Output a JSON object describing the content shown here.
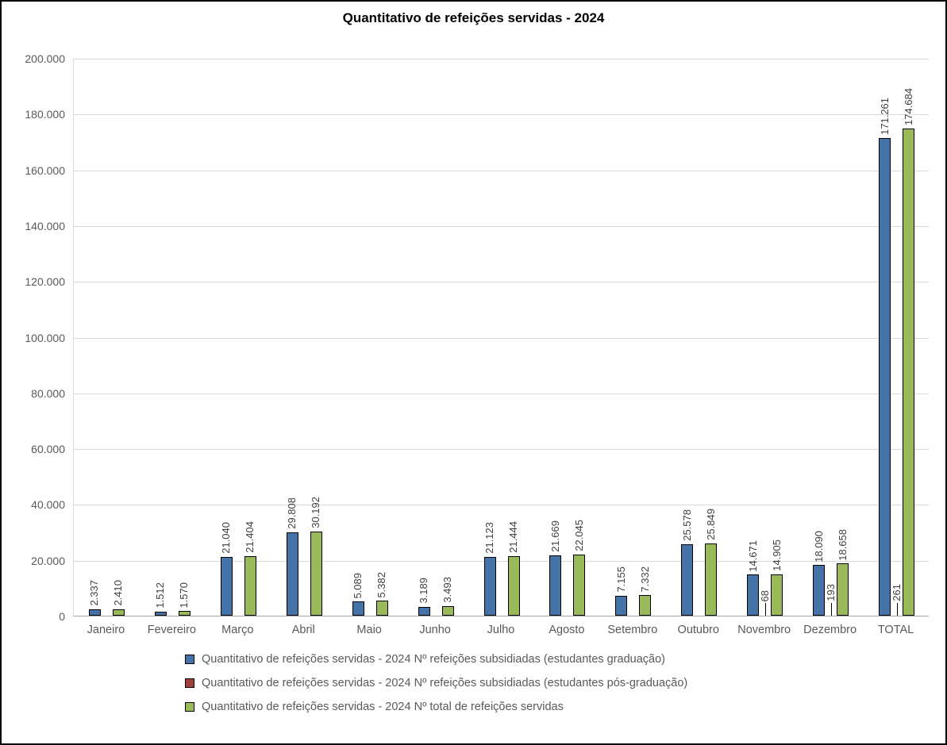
{
  "title": "Quantitativo de refeições servidas - 2024",
  "chart_data": {
    "type": "bar",
    "title": "Quantitativo de refeições servidas - 2024",
    "categories": [
      "Janeiro",
      "Fevereiro",
      "Março",
      "Abril",
      "Maio",
      "Junho",
      "Julho",
      "Agosto",
      "Setembro",
      "Outubro",
      "Novembro",
      "Dezembro",
      "TOTAL"
    ],
    "series": [
      {
        "key": "refeicoes-subsidiadas-graduacao",
        "name": "Quantitativo de refeições servidas - 2024 Nº refeições subsidiadas (estudantes graduação)",
        "color": "#4573A8",
        "values": [
          2337,
          1512,
          21040,
          29808,
          5089,
          3189,
          21123,
          21669,
          7155,
          25578,
          14671,
          18090,
          171261
        ],
        "labels": [
          "2.337",
          "1.512",
          "21.040",
          "29.808",
          "5.089",
          "3.189",
          "21.123",
          "21.669",
          "7.155",
          "25.578",
          "14.671",
          "18.090",
          "171.261"
        ]
      },
      {
        "key": "refeicoes-subsidiadas-pos-graduacao",
        "name": "Quantitativo de refeições servidas - 2024 Nº refeições subsidiadas (estudantes pós-graduação)",
        "color": "#9E413C",
        "values": [
          0,
          0,
          0,
          0,
          0,
          0,
          0,
          0,
          0,
          0,
          68,
          193,
          261
        ],
        "labels": [
          "",
          "",
          "",
          "",
          "",
          "",
          "",
          "",
          "",
          "",
          "68",
          "193",
          "261"
        ]
      },
      {
        "key": "total-refeicoes-servidas",
        "name": "Quantitativo de refeições servidas - 2024 Nº total de refeições servidas",
        "color": "#9ABA59",
        "values": [
          2410,
          1570,
          21404,
          30192,
          5382,
          3493,
          21444,
          22045,
          7332,
          25849,
          14905,
          18658,
          174684
        ],
        "labels": [
          "2.410",
          "1.570",
          "21.404",
          "30.192",
          "5.382",
          "3.493",
          "21.444",
          "22.045",
          "7.332",
          "25.849",
          "14.905",
          "18.658",
          "174.684"
        ]
      }
    ],
    "ylim": [
      0,
      200000
    ],
    "ytick_step": 20000,
    "ytick_labels": [
      "0",
      "20.000",
      "40.000",
      "60.000",
      "80.000",
      "100.000",
      "120.000",
      "140.000",
      "160.000",
      "180.000",
      "200.000"
    ],
    "grid": true,
    "legend_position": "bottom"
  }
}
